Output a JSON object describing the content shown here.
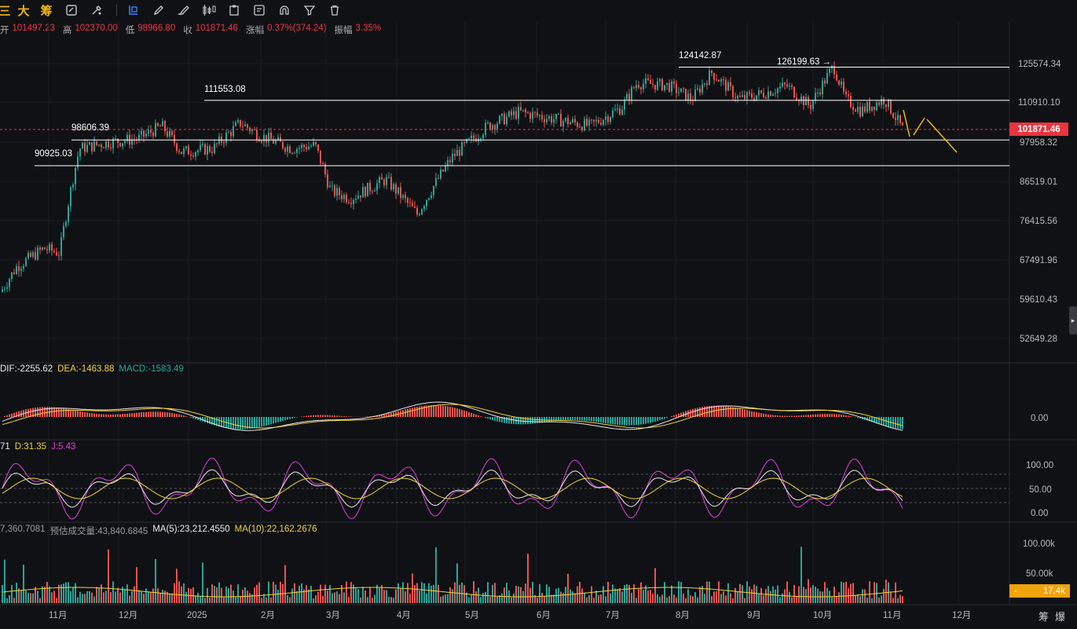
{
  "toolbar": {
    "labels": [
      "三",
      "大",
      "筹"
    ],
    "icons": [
      "edit-icon",
      "tools-icon",
      "select-icon",
      "pen-icon",
      "brush-icon",
      "candle-icon",
      "clipboard-icon",
      "note-icon",
      "magnet-icon",
      "filter-icon",
      "trash-icon"
    ]
  },
  "ohlc": {
    "open_label": "开",
    "open": "101497.23",
    "high_label": "高",
    "high": "102370.00",
    "low_label": "低",
    "low": "98966.80",
    "close_label": "收",
    "close": "101871.46",
    "change_label": "涨幅",
    "change": "0.37%(374.24)",
    "amp_label": "振幅",
    "amp": "3.35%"
  },
  "price_axis": [
    "125574.34",
    "110910.10",
    "97958.32",
    "86519.01",
    "76415.56",
    "67491.96",
    "59610.43",
    "52649.28"
  ],
  "current_price": "101871.46",
  "levels": [
    "124142.87",
    "126199.63 →",
    "111553.08",
    "98606.39",
    "90925.03"
  ],
  "macd": {
    "dif": "DIF:-2255.62",
    "dea": "DEA:-1463.88",
    "macd": "MACD:-1583.49",
    "axis": [
      "0.00"
    ]
  },
  "kdj": {
    "k": "71",
    "d": "D:31.35",
    "j": "J:5.43",
    "axis": [
      "100.00",
      "50.00",
      "0.00"
    ]
  },
  "volume": {
    "vol": "7,360.7081",
    "est": "预估成交量:43,840.6845",
    "ma5": "MA(5):23,212.4550",
    "ma10": "MA(10):22,162.2676",
    "axis": [
      "100.00k",
      "50.00k"
    ],
    "current": "17.4k"
  },
  "time_axis": [
    "11月",
    "12月",
    "2025",
    "2月",
    "3月",
    "4月",
    "5月",
    "6月",
    "7月",
    "8月",
    "9月",
    "10月",
    "11月",
    "12月"
  ],
  "bottom_right": [
    "筹",
    "爆"
  ],
  "colors": {
    "up": "#26a69a",
    "down": "#ef5350",
    "accent": "#f0b90b",
    "price_tag": "#e8353f"
  },
  "chart_data": {
    "type": "candlestick",
    "title": "",
    "x": [
      "2024-10",
      "2024-11",
      "2024-12",
      "2025-01",
      "2025-02",
      "2025-03",
      "2025-04",
      "2025-05",
      "2025-06",
      "2025-07",
      "2025-08",
      "2025-09",
      "2025-10",
      "2025-11"
    ],
    "close": [
      69000,
      96000,
      93500,
      102000,
      84500,
      82500,
      94200,
      104500,
      107200,
      115700,
      108200,
      114000,
      109500,
      101871.46
    ],
    "high": [
      73500,
      99500,
      108300,
      109300,
      102500,
      95000,
      97900,
      111900,
      110500,
      123200,
      124142.87,
      117900,
      126199.63,
      111000
    ],
    "low": [
      58900,
      66800,
      91200,
      89200,
      78200,
      76600,
      74500,
      93400,
      98200,
      105100,
      111900,
      107300,
      102000,
      98966.8
    ],
    "ylim": [
      49000,
      131000
    ],
    "levels": [
      124142.87,
      126199.63,
      111553.08,
      98606.39,
      90925.03
    ]
  }
}
